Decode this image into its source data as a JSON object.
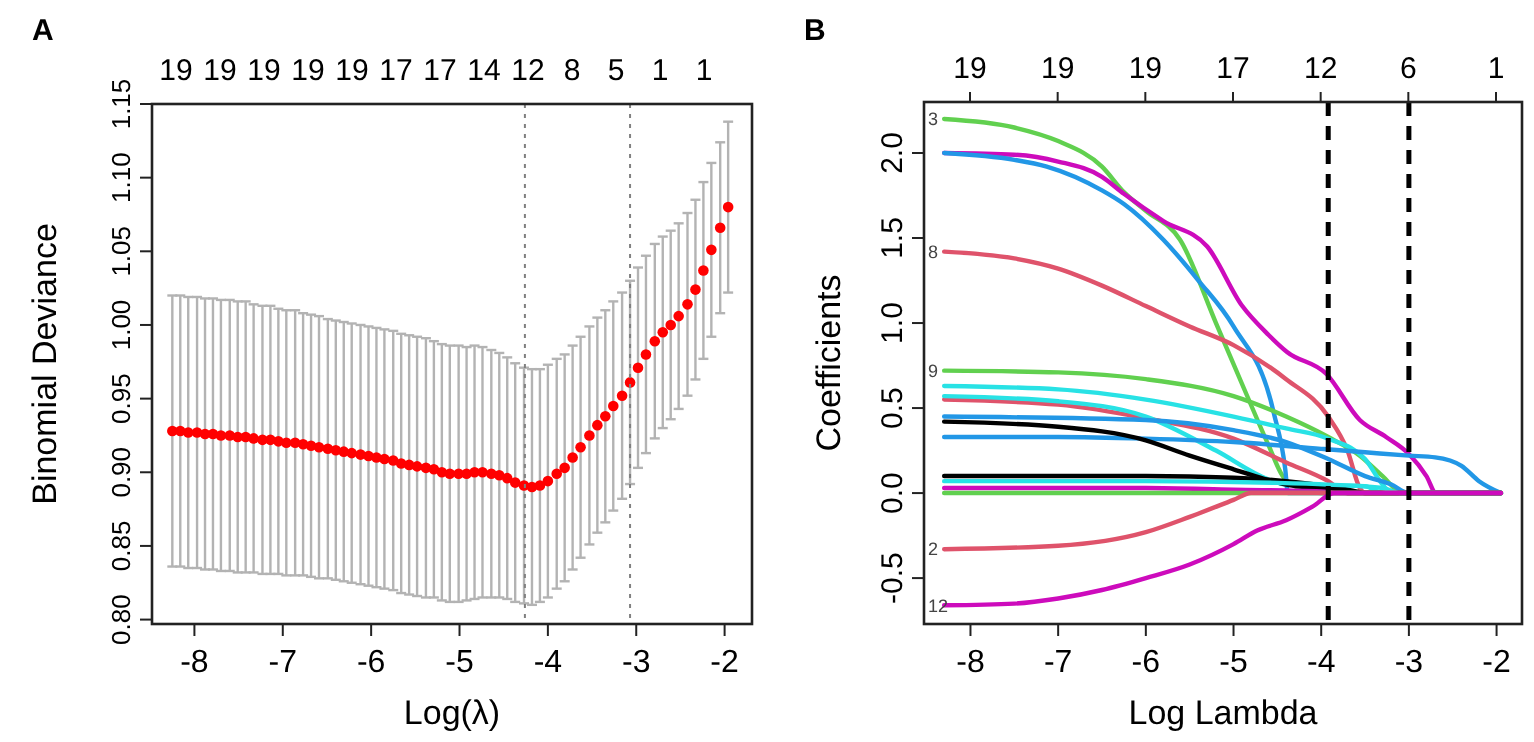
{
  "chart_data": [
    {
      "type": "scatter",
      "title": "A",
      "xlabel": "Log(λ)",
      "ylabel": "Binomial Deviance",
      "marker": "circle",
      "xlim": [
        -8.48,
        -1.69
      ],
      "ylim": [
        0.797,
        1.15
      ],
      "xticks": [
        -8,
        -7,
        -6,
        -5,
        -4,
        -3,
        -2
      ],
      "yticks": [
        {
          "value": 0.8,
          "label": "0.80"
        },
        {
          "value": 0.85,
          "label": "0.85"
        },
        {
          "value": 0.9,
          "label": "0.90"
        },
        {
          "value": 0.95,
          "label": "0.95"
        },
        {
          "value": 1.0,
          "label": "1.00"
        },
        {
          "value": 1.05,
          "label": "1.05"
        },
        {
          "value": 1.1,
          "label": "1.10"
        },
        {
          "value": 1.15,
          "label": "1.15"
        }
      ],
      "annotations": [
        "19",
        "19",
        "19",
        "19",
        "19",
        "17",
        "17",
        "14",
        "12",
        "8",
        "5",
        "1",
        "1"
      ],
      "ref_lines": [
        {
          "axis": "x",
          "value": -4.26,
          "line_style": "dotted",
          "color": "#808080"
        },
        {
          "axis": "x",
          "value": -3.07,
          "line_style": "dotted",
          "color": "#808080"
        }
      ],
      "series": [
        {
          "color": "#ff0000",
          "x": [
            -8.25,
            -8.16,
            -8.07,
            -7.97,
            -7.88,
            -7.79,
            -7.7,
            -7.6,
            -7.51,
            -7.42,
            -7.33,
            -7.23,
            -7.14,
            -7.05,
            -6.96,
            -6.86,
            -6.77,
            -6.68,
            -6.59,
            -6.49,
            -6.4,
            -6.31,
            -6.22,
            -6.12,
            -6.03,
            -5.94,
            -5.85,
            -5.75,
            -5.66,
            -5.57,
            -5.48,
            -5.38,
            -5.29,
            -5.2,
            -5.11,
            -5.01,
            -4.92,
            -4.83,
            -4.74,
            -4.64,
            -4.55,
            -4.46,
            -4.37,
            -4.27,
            -4.18,
            -4.09,
            -4.0,
            -3.9,
            -3.81,
            -3.72,
            -3.63,
            -3.53,
            -3.44,
            -3.35,
            -3.26,
            -3.16,
            -3.07,
            -2.98,
            -2.89,
            -2.79,
            -2.7,
            -2.61,
            -2.52,
            -2.42,
            -2.33,
            -2.24,
            -2.15,
            -2.05,
            -1.96
          ],
          "values": [
            0.928,
            0.928,
            0.927,
            0.927,
            0.926,
            0.926,
            0.925,
            0.925,
            0.924,
            0.924,
            0.923,
            0.922,
            0.922,
            0.921,
            0.92,
            0.92,
            0.919,
            0.918,
            0.917,
            0.916,
            0.915,
            0.914,
            0.913,
            0.912,
            0.911,
            0.91,
            0.909,
            0.908,
            0.906,
            0.905,
            0.904,
            0.903,
            0.902,
            0.9,
            0.899,
            0.899,
            0.899,
            0.9,
            0.9,
            0.899,
            0.898,
            0.896,
            0.893,
            0.891,
            0.89,
            0.891,
            0.894,
            0.899,
            0.903,
            0.91,
            0.917,
            0.925,
            0.932,
            0.938,
            0.945,
            0.952,
            0.961,
            0.971,
            0.98,
            0.989,
            0.995,
            1.0,
            1.006,
            1.014,
            1.024,
            1.037,
            1.051,
            1.066,
            1.08
          ],
          "errors": [
            0.092,
            0.092,
            0.092,
            0.092,
            0.092,
            0.092,
            0.092,
            0.092,
            0.092,
            0.092,
            0.091,
            0.091,
            0.091,
            0.09,
            0.09,
            0.09,
            0.089,
            0.089,
            0.089,
            0.088,
            0.088,
            0.088,
            0.088,
            0.088,
            0.088,
            0.088,
            0.088,
            0.088,
            0.088,
            0.088,
            0.088,
            0.088,
            0.087,
            0.087,
            0.087,
            0.087,
            0.086,
            0.086,
            0.085,
            0.084,
            0.083,
            0.082,
            0.081,
            0.08,
            0.08,
            0.079,
            0.079,
            0.078,
            0.077,
            0.076,
            0.075,
            0.074,
            0.073,
            0.072,
            0.071,
            0.07,
            0.069,
            0.068,
            0.067,
            0.066,
            0.065,
            0.064,
            0.063,
            0.062,
            0.061,
            0.06,
            0.059,
            0.058,
            0.058
          ]
        }
      ]
    },
    {
      "type": "line",
      "title": "B",
      "xlabel": "Log Lambda",
      "ylabel": "Coefficients",
      "line_style": "solid",
      "xlim": [
        -8.53,
        -1.71
      ],
      "ylim": [
        -0.77,
        2.3
      ],
      "xticks": [
        -8,
        -7,
        -6,
        -5,
        -4,
        -3,
        -2
      ],
      "yticks": [
        {
          "value": -0.5,
          "label": "-0.5"
        },
        {
          "value": 0,
          "label": "0.0"
        },
        {
          "value": 0.5,
          "label": "0.5"
        },
        {
          "value": 1,
          "label": "1.0"
        },
        {
          "value": 1.5,
          "label": "1.5"
        },
        {
          "value": 2,
          "label": "2.0"
        }
      ],
      "annotations": [
        "19",
        "19",
        "19",
        "17",
        "12",
        "6",
        "1"
      ],
      "ref_lines": [
        {
          "axis": "x",
          "value": -3.92,
          "line_style": "dashed",
          "color": "#000000"
        },
        {
          "axis": "x",
          "value": -3.0,
          "line_style": "dashed",
          "color": "#000000"
        }
      ],
      "series": [
        {
          "name": "3",
          "color": "#61d04f",
          "x": [
            -8.3,
            -7.5,
            -7,
            -6.5,
            -6.25,
            -6,
            -5.61,
            -5.2,
            -4.86,
            -4.6,
            -4.44,
            -4.3,
            -4.0,
            -1.95
          ],
          "values": [
            2.2,
            2.15,
            2.07,
            1.92,
            1.77,
            1.66,
            1.49,
            1.0,
            0.59,
            0.28,
            0.1,
            0.04,
            0,
            0
          ]
        },
        {
          "color": "#cd0bbc",
          "x": [
            -8.3,
            -7.5,
            -7,
            -6.5,
            -6.25,
            -5.8,
            -5.3,
            -4.9,
            -4.6,
            -4.39,
            -3.94,
            -3.56,
            -3.26,
            -3.0,
            -2.8,
            -2.69,
            -1.95
          ],
          "values": [
            2.0,
            1.99,
            1.95,
            1.86,
            1.76,
            1.6,
            1.45,
            1.1,
            0.93,
            0.83,
            0.7,
            0.43,
            0.33,
            0.23,
            0.1,
            0,
            0
          ]
        },
        {
          "color": "#2297e6",
          "x": [
            -8.3,
            -7.5,
            -7.13,
            -6.5,
            -6.25,
            -5.8,
            -5.4,
            -5.0,
            -4.54,
            -4.41,
            -4.38,
            -1.95
          ],
          "values": [
            2.0,
            1.96,
            1.92,
            1.78,
            1.7,
            1.49,
            1.25,
            0.98,
            0.47,
            0.14,
            0,
            0
          ]
        },
        {
          "name": "8",
          "color": "#df536b",
          "x": [
            -8.3,
            -7.5,
            -7,
            -6.5,
            -6,
            -5.5,
            -5,
            -4.4,
            -3.92,
            -3.7,
            -3.56,
            -3.5,
            -1.95
          ],
          "values": [
            1.42,
            1.38,
            1.32,
            1.22,
            1.1,
            0.98,
            0.87,
            0.67,
            0.45,
            0.25,
            0.03,
            0,
            0
          ]
        },
        {
          "name": "9",
          "color": "#61d04f",
          "x": [
            -8.3,
            -7,
            -6,
            -5,
            -4.4,
            -3.92,
            -3.56,
            -3.3,
            -3.07,
            -1.95
          ],
          "values": [
            0.72,
            0.71,
            0.67,
            0.57,
            0.45,
            0.33,
            0.22,
            0.1,
            0,
            0
          ]
        },
        {
          "color": "#28e2e5",
          "x": [
            -8.3,
            -7,
            -6,
            -5,
            -4.4,
            -3.92,
            -3.5,
            -3.3,
            -3.2,
            -1.95
          ],
          "values": [
            0.63,
            0.61,
            0.55,
            0.45,
            0.38,
            0.32,
            0.2,
            0.05,
            0,
            0
          ]
        },
        {
          "color": "#df536b",
          "x": [
            -8.3,
            -7,
            -6,
            -5,
            -4.4,
            -3.92,
            -3.7,
            -1.95
          ],
          "values": [
            0.55,
            0.52,
            0.44,
            0.32,
            0.18,
            0.07,
            0,
            0
          ]
        },
        {
          "color": "#28e2e5",
          "x": [
            -8.3,
            -7,
            -6,
            -5.2,
            -4.6,
            -4.4,
            -3.5,
            -3.3,
            -1.95
          ],
          "values": [
            0.57,
            0.54,
            0.45,
            0.25,
            0.08,
            0.05,
            0.04,
            0,
            0
          ]
        },
        {
          "color": "#2297e6",
          "x": [
            -8.3,
            -6,
            -5,
            -4.4,
            -3.92,
            -3.5,
            -3.2,
            -3.0,
            -1.95
          ],
          "values": [
            0.45,
            0.43,
            0.37,
            0.3,
            0.2,
            0.1,
            0.05,
            0,
            0
          ]
        },
        {
          "color": "#2297e6",
          "x": [
            -8.3,
            -7,
            -6,
            -5,
            -4,
            -3.5,
            -3,
            -2.7,
            -2.4,
            -2.2,
            -1.95
          ],
          "values": [
            0.33,
            0.33,
            0.32,
            0.3,
            0.26,
            0.24,
            0.22,
            0.21,
            0.16,
            0.07,
            0
          ]
        },
        {
          "color": "#000000",
          "x": [
            -8.3,
            -7,
            -6,
            -5.5,
            -5,
            -4.4,
            -3.92,
            -3.7,
            -1.95
          ],
          "values": [
            0.42,
            0.39,
            0.31,
            0.22,
            0.14,
            0.05,
            0.02,
            0,
            0
          ]
        },
        {
          "color": "#000000",
          "x": [
            -8.3,
            -6,
            -5,
            -4.4,
            -3.92,
            -3.6,
            -3.5,
            -1.95
          ],
          "values": [
            0.1,
            0.1,
            0.09,
            0.07,
            0.04,
            0.01,
            0,
            0
          ]
        },
        {
          "color": "#28e2e5",
          "x": [
            -8.3,
            -6,
            -4.5,
            -3.92,
            -3.3,
            -3.1,
            -1.95
          ],
          "values": [
            0.07,
            0.07,
            0.06,
            0.05,
            0.03,
            0,
            0
          ]
        },
        {
          "color": "#cd0bbc",
          "x": [
            -8.3,
            -6,
            -5,
            -4,
            -3.8,
            -1.95
          ],
          "values": [
            0.03,
            0.03,
            0.02,
            0.01,
            0,
            0
          ]
        },
        {
          "color": "#61d04f",
          "x": [
            -8.3,
            -1.95
          ],
          "values": [
            0,
            0
          ]
        },
        {
          "name": "2",
          "color": "#df536b",
          "x": [
            -8.3,
            -7,
            -6,
            -5.5,
            -5,
            -4.8,
            -1.95
          ],
          "values": [
            -0.33,
            -0.31,
            -0.23,
            -0.14,
            -0.04,
            0,
            0
          ]
        },
        {
          "name": "12",
          "color": "#cd0bbc",
          "x": [
            -8.3,
            -7.5,
            -7,
            -6.5,
            -6,
            -5.5,
            -5,
            -4.73,
            -4.4,
            -4.1,
            -3.85,
            -1.95
          ],
          "values": [
            -0.66,
            -0.65,
            -0.62,
            -0.57,
            -0.5,
            -0.42,
            -0.3,
            -0.22,
            -0.16,
            -0.08,
            0,
            0
          ]
        }
      ]
    }
  ]
}
